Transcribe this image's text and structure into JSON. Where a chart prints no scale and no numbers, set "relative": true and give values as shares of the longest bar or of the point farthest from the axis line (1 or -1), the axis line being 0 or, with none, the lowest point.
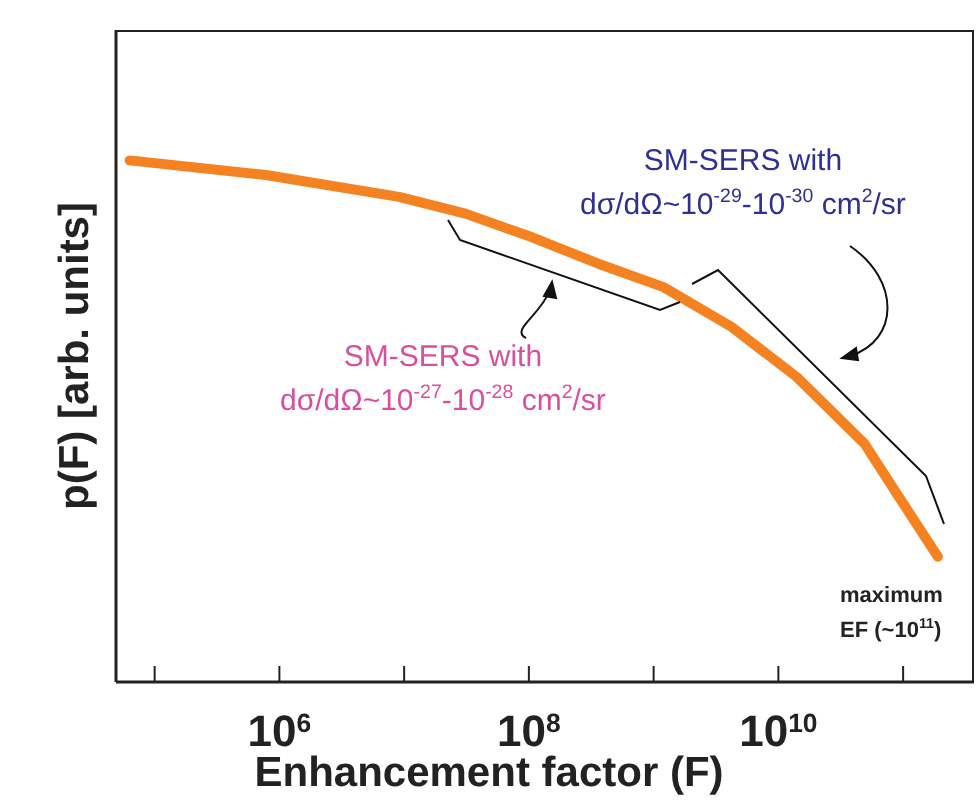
{
  "chart_data": {
    "type": "line",
    "relative": true,
    "log": "x",
    "xlabel": "Enhancement factor (F)",
    "ylabel": "p(F) [arb. units]",
    "xlim": [
      49000,
      370000000000
    ],
    "xticks": [
      {
        "value": 100000,
        "label": null
      },
      {
        "value": 1000000,
        "label": "10$^{6}$"
      },
      {
        "value": 10000000,
        "label": null
      },
      {
        "value": 100000000,
        "label": "10$^{8}$"
      },
      {
        "value": 1000000000,
        "label": null
      },
      {
        "value": 10000000000,
        "label": "10$^{10}$"
      },
      {
        "value": 100000000000,
        "label": null
      }
    ],
    "tick_labels": "x",
    "grid": false,
    "legend": false,
    "marker": "none",
    "line_style": "solid",
    "x": [
      63000,
      780000,
      9100000,
      31000000,
      105000000,
      360000000,
      1200000000,
      4200000000,
      14000000000,
      49000000000,
      89000000000,
      190000000000
    ],
    "series": [
      {
        "color": "#f58220",
        "values": [
          1,
          0.972,
          0.93,
          0.898,
          0.853,
          0.802,
          0.757,
          0.681,
          0.585,
          0.457,
          0.361,
          0.24
        ]
      }
    ],
    "annotations": [
      "SM-SERS with\ndσ/dΩ~10$^{-27}$-10$^{-28}$ cm$^{2}$/sr",
      "SM-SERS with\ndσ/dΩ~10$^{-29}$-10$^{-30}$ cm$^{2}$/sr",
      "maximum\nEF (~10$^{11}$)"
    ]
  }
}
